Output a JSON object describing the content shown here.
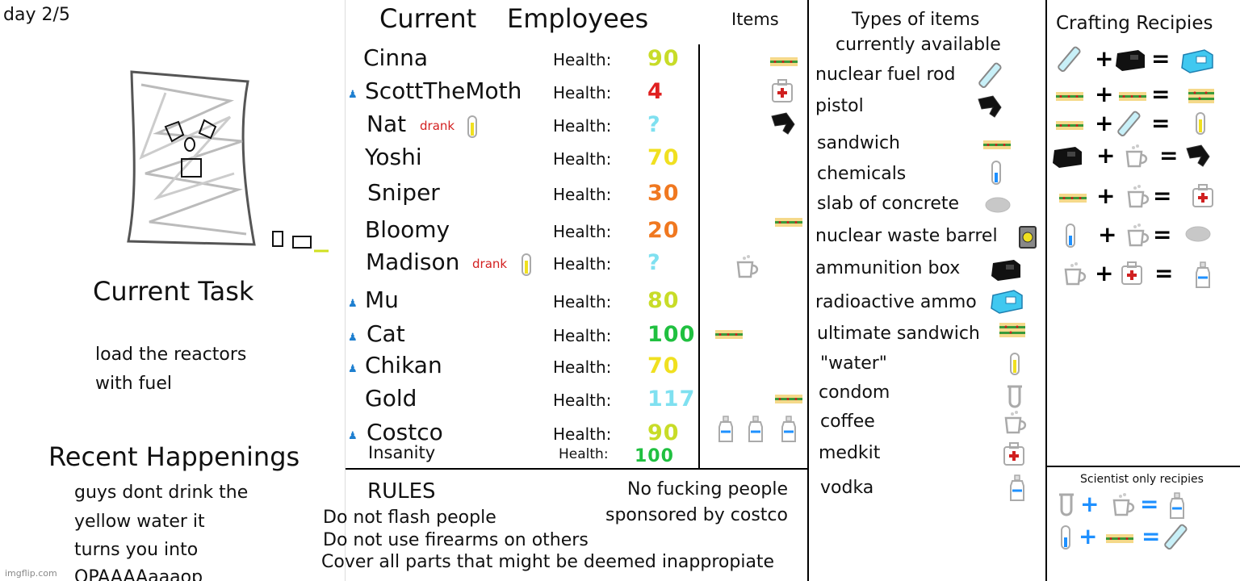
{
  "day_label": "day 2/5",
  "current_task": {
    "heading": "Current Task",
    "line1": "load the reactors",
    "line2": "with fuel"
  },
  "recent": {
    "heading": "Recent Happenings",
    "line1": "guys dont drink the",
    "line2": "yellow water it",
    "line3": "turns you into",
    "line4": "OPAAAAaaaop"
  },
  "watermark": "imgflip.com",
  "employees": {
    "heading1": "Current",
    "heading2": "Employees",
    "items_heading": "Items",
    "health_label": "Health:",
    "rows": [
      {
        "name": "Cinna",
        "health": "90",
        "color": "#c8dc28",
        "item": "sandwich"
      },
      {
        "name": "ScottTheMoth",
        "health": "4",
        "color": "#e02020",
        "item": "medkit"
      },
      {
        "name": "Nat",
        "note": "drank",
        "health": "?",
        "color": "#7fe0f0",
        "item": "pistol"
      },
      {
        "name": "Yoshi",
        "health": "70",
        "color": "#f0e020"
      },
      {
        "name": "Sniper",
        "health": "30",
        "color": "#f07820"
      },
      {
        "name": "Bloomy",
        "health": "20",
        "color": "#f07820",
        "item": "sandwich"
      },
      {
        "name": "Madison",
        "note": "drank",
        "health": "?",
        "color": "#7fe0f0",
        "item": "coffee"
      },
      {
        "name": "Mu",
        "health": "80",
        "color": "#c8dc28"
      },
      {
        "name": "Cat",
        "health": "100",
        "color": "#20c040",
        "item": "sandwich"
      },
      {
        "name": "Chikan",
        "health": "70",
        "color": "#f0e020"
      },
      {
        "name": "Gold",
        "health": "117",
        "color": "#7fe0f0",
        "item": "sandwich"
      },
      {
        "name": "Costco",
        "health": "90",
        "color": "#c8dc28",
        "item": "vodka x3"
      }
    ],
    "insanity_label": "Insanity",
    "insanity_health": "100",
    "insanity_color": "#20c040"
  },
  "rules": {
    "heading": "RULES",
    "rule1": "Do not flash people",
    "rule2": "Do not use firearms on others",
    "rule3": "Cover all parts that might be deemed inappropiate",
    "side1": "No fucking people",
    "side2": "sponsored by costco"
  },
  "types": {
    "heading1": "Types of items",
    "heading2": "currently available",
    "items": [
      "nuclear fuel rod",
      "pistol",
      "sandwich",
      "chemicals",
      "slab of concrete",
      "nuclear waste barrel",
      "ammunition box",
      "radioactive ammo",
      "ultimate sandwich",
      "\"water\"",
      "condom",
      "coffee",
      "medkit",
      "vodka"
    ]
  },
  "crafting": {
    "heading": "Crafting Recipies",
    "plus": "+",
    "equals": "=",
    "scientist_heading": "Scientist only recipies"
  }
}
